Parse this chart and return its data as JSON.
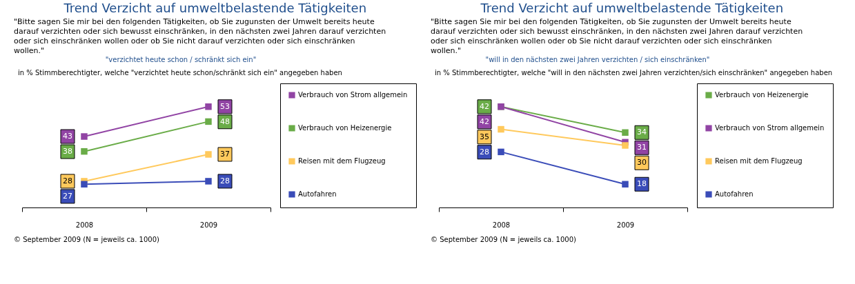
{
  "chart_data": [
    {
      "type": "line",
      "title": "Trend Verzicht auf umweltbelastende Tätigkeiten",
      "subtitle": "\"Bitte sagen Sie mir bei den folgenden Tätigkeiten, ob Sie zugunsten der Umwelt bereits heute darauf verzichten oder sich bewusst einschränken, in den nächsten zwei Jahren darauf verzichten oder sich einschränken wollen oder ob Sie nicht darauf verzichten oder sich einschränken wollen.\"",
      "annotations": [
        "\"verzichtet heute schon / schränkt sich ein\"",
        "in % Stimmberechtigter, welche \"verzichtet heute schon/schränkt sich ein\" angegeben haben",
        "© September 2009 (N = jeweils ca. 1000)"
      ],
      "categories": [
        "2008",
        "2009"
      ],
      "series": [
        {
          "name": "Verbrauch von Strom allgemein",
          "color": "#9144a4",
          "values": [
            43,
            53
          ]
        },
        {
          "name": "Verbrauch von Heizenergie",
          "color": "#6aac48",
          "values": [
            38,
            48
          ]
        },
        {
          "name": "Reisen mit dem Flugzeug",
          "color": "#ffc95c",
          "values": [
            28,
            37
          ]
        },
        {
          "name": "Autofahren",
          "color": "#3a4cb8",
          "values": [
            27,
            28
          ]
        }
      ],
      "data_labels": true,
      "marker": "square",
      "legend": "right",
      "tick_labels": "x",
      "grid": false
    },
    {
      "type": "line",
      "title": "Trend Verzicht auf umweltbelastende Tätigkeiten",
      "subtitle": "\"Bitte sagen Sie mir bei den folgenden Tätigkeiten, ob Sie zugunsten der Umwelt bereits heute darauf verzichten oder sich bewusst einschränken, in den nächsten zwei Jahren darauf verzichten oder sich einschränken wollen oder ob Sie nicht darauf verzichten oder sich einschränken wollen.\"",
      "annotations": [
        "\"will in den nächsten zwei Jahren verzichten / sich einschränken\"",
        "in % Stimmberechtigter, welche \"will in den nächsten zwei Jahren verzichten/sich einschränken\" angegeben haben",
        "© September 2009 (N = jeweils ca. 1000)"
      ],
      "categories": [
        "2008",
        "2009"
      ],
      "series": [
        {
          "name": "Verbrauch von Heizenergie",
          "color": "#6aac48",
          "values": [
            42,
            34
          ]
        },
        {
          "name": "Verbrauch von Strom allgemein",
          "color": "#9144a4",
          "values": [
            42,
            31
          ]
        },
        {
          "name": "Reisen mit dem Flugzeug",
          "color": "#ffc95c",
          "values": [
            35,
            30
          ]
        },
        {
          "name": "Autofahren",
          "color": "#3a4cb8",
          "values": [
            28,
            18
          ]
        }
      ],
      "data_labels": true,
      "marker": "square",
      "legend": "right",
      "tick_labels": "x",
      "grid": false
    }
  ]
}
